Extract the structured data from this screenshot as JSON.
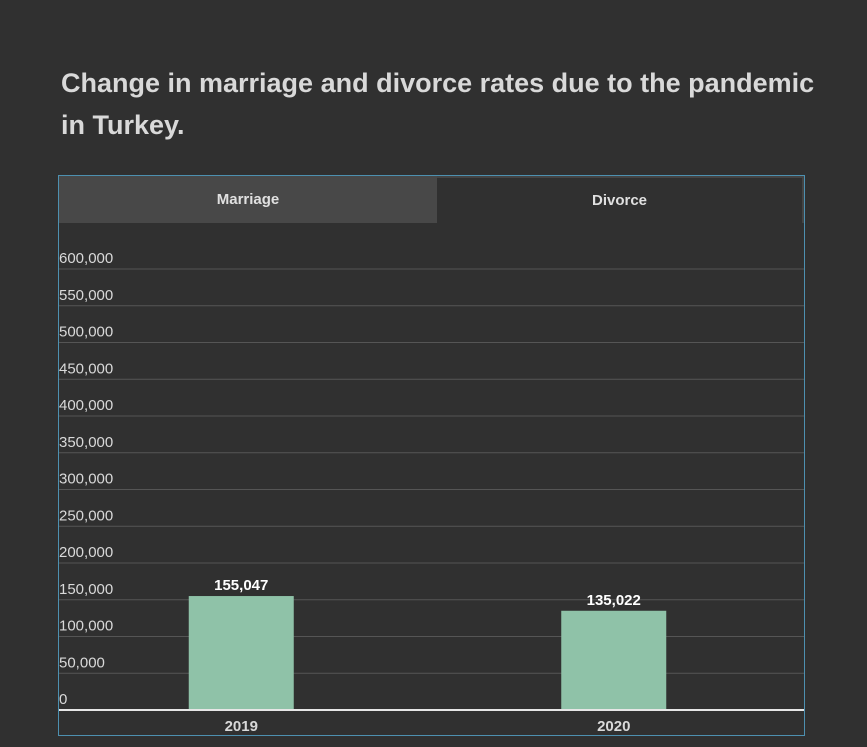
{
  "title": "Change in marriage and divorce rates due to the pandemic in Turkey.",
  "tabs": [
    {
      "label": "Marriage",
      "active": false
    },
    {
      "label": "Divorce",
      "active": true
    }
  ],
  "chart_data": {
    "type": "bar",
    "categories": [
      "2019",
      "2020"
    ],
    "values": [
      155047,
      135022
    ],
    "value_labels": [
      "155,047",
      "135,022"
    ],
    "ylim": [
      0,
      600000
    ],
    "yticks": [
      0,
      50000,
      100000,
      150000,
      200000,
      250000,
      300000,
      350000,
      400000,
      450000,
      500000,
      550000,
      600000
    ],
    "ytick_labels": [
      "0",
      "50,000",
      "100,000",
      "150,000",
      "200,000",
      "250,000",
      "300,000",
      "350,000",
      "400,000",
      "450,000",
      "500,000",
      "550,000",
      "600,000"
    ],
    "grid": true,
    "bar_color": "#8fc2a8",
    "grid_color": "#555555",
    "axis_color": "#e6e6e6"
  }
}
